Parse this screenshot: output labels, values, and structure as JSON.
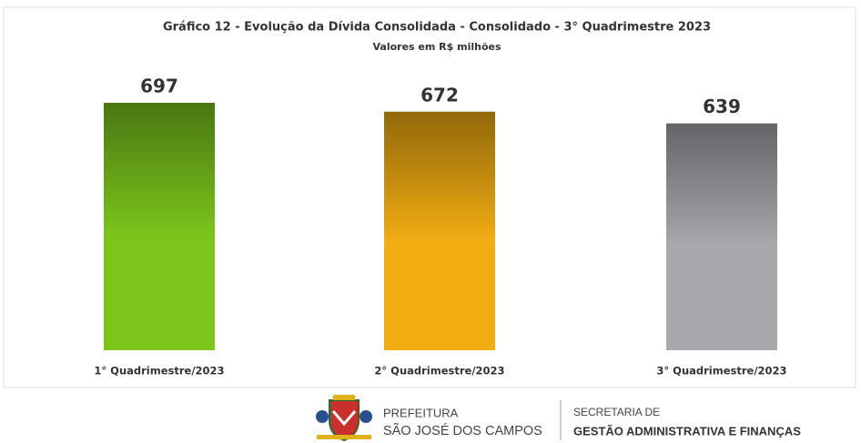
{
  "chart_data": {
    "type": "bar",
    "title": "Gráfico 12 - Evolução da Dívida Consolidada - Consolidado - 3° Quadrimestre 2023",
    "subtitle": "Valores em R$ milhões",
    "categories": [
      "1° Quadrimestre/2023",
      "2° Quadrimestre/2023",
      "3° Quadrimestre/2023"
    ],
    "values": [
      697,
      672,
      639
    ],
    "colors": [
      "#7cc61c",
      "#f2ad12",
      "#a9a9ad"
    ]
  },
  "footer": {
    "prefeitura": "PREFEITURA",
    "city": "SÃO JOSÉ DOS CAMPOS",
    "secretaria": "SECRETARIA DE",
    "department": "GESTÃO ADMINISTRATIVA E FINANÇAS"
  }
}
